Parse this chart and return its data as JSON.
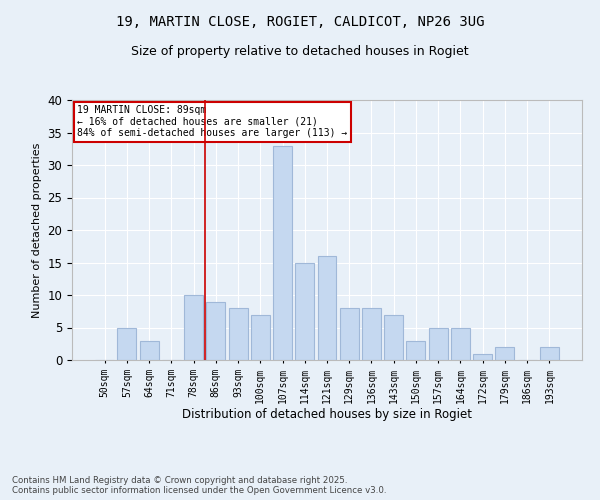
{
  "title1": "19, MARTIN CLOSE, ROGIET, CALDICOT, NP26 3UG",
  "title2": "Size of property relative to detached houses in Rogiet",
  "xlabel": "Distribution of detached houses by size in Rogiet",
  "ylabel": "Number of detached properties",
  "categories": [
    "50sqm",
    "57sqm",
    "64sqm",
    "71sqm",
    "78sqm",
    "86sqm",
    "93sqm",
    "100sqm",
    "107sqm",
    "114sqm",
    "121sqm",
    "129sqm",
    "136sqm",
    "143sqm",
    "150sqm",
    "157sqm",
    "164sqm",
    "172sqm",
    "179sqm",
    "186sqm",
    "193sqm"
  ],
  "values": [
    0,
    5,
    3,
    0,
    10,
    9,
    8,
    7,
    33,
    15,
    16,
    8,
    8,
    7,
    3,
    5,
    5,
    1,
    2,
    0,
    2
  ],
  "bar_color": "#c5d8f0",
  "bar_edge_color": "#a0b8d8",
  "bg_color": "#e8f0f8",
  "grid_color": "#ffffff",
  "vline_x": 4.5,
  "vline_color": "#cc0000",
  "annotation_text": "19 MARTIN CLOSE: 89sqm\n← 16% of detached houses are smaller (21)\n84% of semi-detached houses are larger (113) →",
  "annotation_box_color": "#ffffff",
  "annotation_box_edge": "#cc0000",
  "footer": "Contains HM Land Registry data © Crown copyright and database right 2025.\nContains public sector information licensed under the Open Government Licence v3.0.",
  "ylim": [
    0,
    40
  ],
  "yticks": [
    0,
    5,
    10,
    15,
    20,
    25,
    30,
    35,
    40
  ],
  "title1_fontsize": 10,
  "title2_fontsize": 9
}
